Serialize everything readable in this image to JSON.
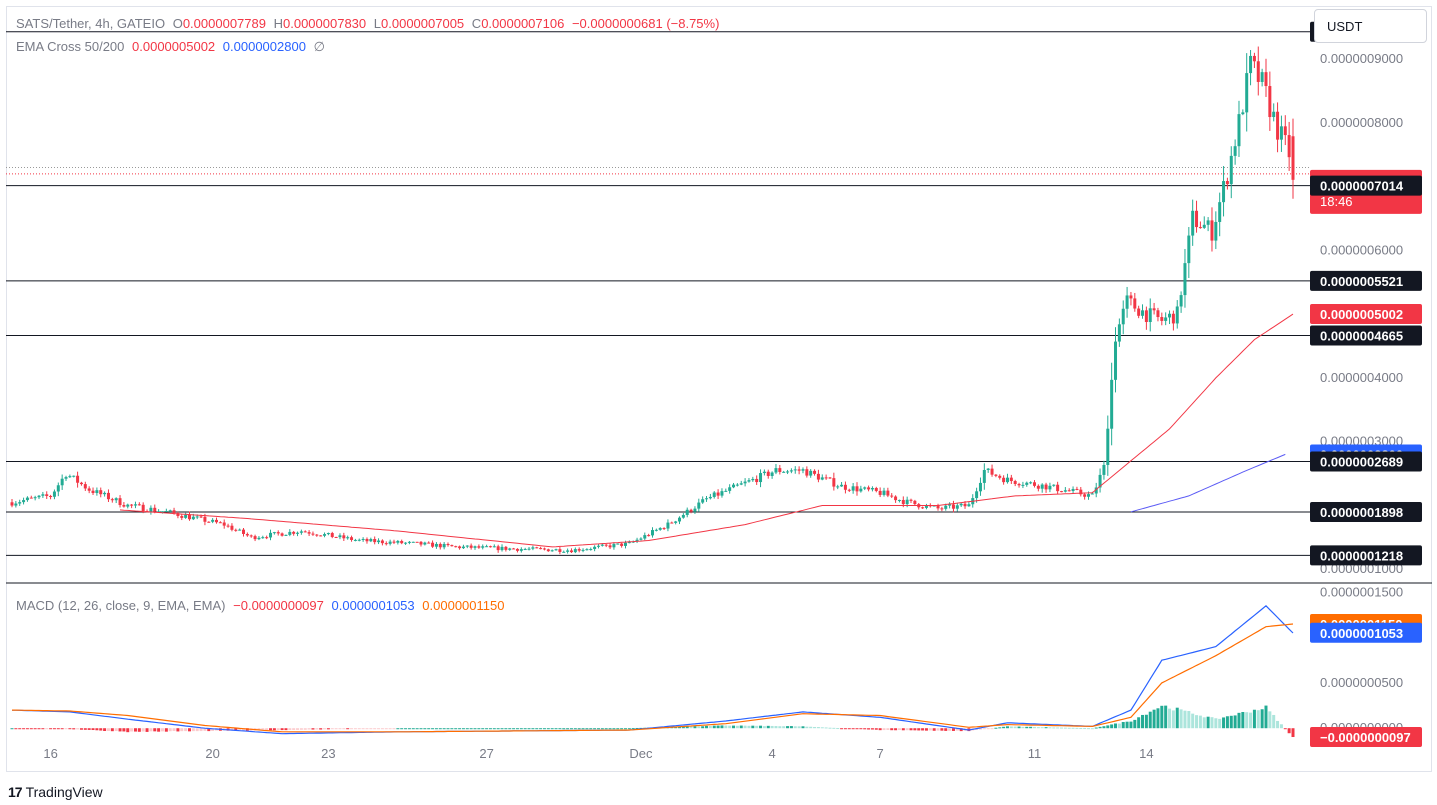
{
  "header": {
    "symbol": "SATS/Tether, 4h, GATEIO",
    "ohlc": {
      "o_label": "O",
      "o": "0.0000007789",
      "h_label": "H",
      "h": "0.0000007830",
      "l_label": "L",
      "l": "0.0000007005",
      "c_label": "C",
      "c": "0.0000007106",
      "change": "−0.0000000681 (−8.75%)"
    },
    "ema_label": "EMA Cross 50/200",
    "ema_fast": "0.0000005002",
    "ema_slow": "0.0000002800",
    "ema_suffix": "∅"
  },
  "currency_button": "USDT",
  "macd_legend": {
    "label": "MACD (12, 26, close, 9, EMA, EMA)",
    "hist": "−0.0000000097",
    "macd": "0.0000001053",
    "signal": "0.0000001150"
  },
  "footer": {
    "logo": "17",
    "brand": "TradingView"
  },
  "colors": {
    "up": "#22ab94",
    "down": "#f23645",
    "ema_fast": "#f23645",
    "ema_slow": "#5b5bf5",
    "macd": "#2962ff",
    "signal": "#ff6d00",
    "hist_up": "#22ab94",
    "hist_up_weak": "#ace5dc",
    "hist_down": "#f23645",
    "hist_down_weak": "#fccbcd",
    "axis_text": "#787b86"
  },
  "chart_data": [
    {
      "type": "candlestick",
      "title": "SATS/Tether, 4h, GATEIO",
      "y_ticks": [
        "0.0000009000",
        "0.0000008000",
        "0.0000006000",
        "0.0000004000",
        "0.0000003000",
        "0.0000001000"
      ],
      "x_ticks": [
        "16",
        "20",
        "23",
        "27",
        "Dec",
        "4",
        "7",
        "11",
        "14"
      ],
      "ylim": [
        8e-08,
        9.8e-07
      ],
      "horizontal_levels": [
        9.428e-07,
        7.014e-07,
        5.521e-07,
        4.665e-07,
        2.689e-07,
        1.898e-07,
        1.218e-07
      ],
      "price_labels": [
        {
          "text": "0.0000009428",
          "value": 9.428e-07,
          "kind": "level"
        },
        {
          "text": "0.0000007106",
          "value": 7.106e-07,
          "kind": "last",
          "sub": "18:46"
        },
        {
          "text": "0.0000007014",
          "value": 7.014e-07,
          "kind": "level"
        },
        {
          "text": "0.0000005521",
          "value": 5.521e-07,
          "kind": "level"
        },
        {
          "text": "0.0000005002",
          "value": 5.002e-07,
          "kind": "ema_fast"
        },
        {
          "text": "0.0000004665",
          "value": 4.665e-07,
          "kind": "level"
        },
        {
          "text": "0.0000002800",
          "value": 2.8e-07,
          "kind": "ema_slow"
        },
        {
          "text": "0.0000002689",
          "value": 2.689e-07,
          "kind": "level"
        },
        {
          "text": "0.0000001898",
          "value": 1.898e-07,
          "kind": "level"
        },
        {
          "text": "0.0000001218",
          "value": 1.218e-07,
          "kind": "level"
        }
      ],
      "last_close": 7.106e-07,
      "price_keypoints": [
        [
          0,
          2.05e-07
        ],
        [
          10,
          2.15e-07
        ],
        [
          14,
          2.5e-07
        ],
        [
          20,
          2.25e-07
        ],
        [
          30,
          2e-07
        ],
        [
          40,
          1.9e-07
        ],
        [
          55,
          1.7e-07
        ],
        [
          62,
          1.5e-07
        ],
        [
          75,
          1.6e-07
        ],
        [
          90,
          1.45e-07
        ],
        [
          105,
          1.4e-07
        ],
        [
          115,
          1.35e-07
        ],
        [
          130,
          1.32e-07
        ],
        [
          145,
          1.3e-07
        ],
        [
          160,
          1.4e-07
        ],
        [
          170,
          1.7e-07
        ],
        [
          180,
          2.1e-07
        ],
        [
          190,
          2.35e-07
        ],
        [
          198,
          2.55e-07
        ],
        [
          205,
          2.55e-07
        ],
        [
          215,
          2.3e-07
        ],
        [
          225,
          2.2e-07
        ],
        [
          232,
          2.05e-07
        ],
        [
          240,
          1.95e-07
        ],
        [
          248,
          2e-07
        ],
        [
          252,
          2.55e-07
        ],
        [
          258,
          2.4e-07
        ],
        [
          268,
          2.3e-07
        ],
        [
          276,
          2.2e-07
        ],
        [
          280,
          2.15e-07
        ],
        [
          283,
          2.6e-07
        ],
        [
          286,
          4.65e-07
        ],
        [
          289,
          5.2e-07
        ],
        [
          294,
          5e-07
        ],
        [
          298,
          4.9e-07
        ],
        [
          302,
          5e-07
        ],
        [
          306,
          6.5e-07
        ],
        [
          311,
          6.3e-07
        ],
        [
          315,
          7.2e-07
        ],
        [
          318,
          8e-07
        ],
        [
          321,
          8.9e-07
        ],
        [
          324,
          8.6e-07
        ],
        [
          328,
          7.9e-07
        ],
        [
          332,
          7.4e-07
        ]
      ],
      "ema_fast_keypoints": [
        [
          28,
          1.93e-07
        ],
        [
          60,
          1.8e-07
        ],
        [
          100,
          1.6e-07
        ],
        [
          140,
          1.35e-07
        ],
        [
          165,
          1.45e-07
        ],
        [
          190,
          1.7e-07
        ],
        [
          210,
          2e-07
        ],
        [
          240,
          2e-07
        ],
        [
          260,
          2.15e-07
        ],
        [
          280,
          2.2e-07
        ],
        [
          290,
          2.7e-07
        ],
        [
          300,
          3.2e-07
        ],
        [
          312,
          4e-07
        ],
        [
          322,
          4.6e-07
        ],
        [
          332,
          5e-07
        ]
      ],
      "ema_slow_keypoints": [
        [
          290,
          1.9e-07
        ],
        [
          305,
          2.15e-07
        ],
        [
          320,
          2.55e-07
        ],
        [
          330,
          2.8e-07
        ]
      ]
    },
    {
      "type": "line+bar",
      "title": "MACD (12, 26, close, 9, EMA, EMA)",
      "y_ticks": [
        "0.0000001500",
        "0.0000000500",
        "0.0000000000"
      ],
      "ylim": [
        -1.3e-08,
        1.58e-07
      ],
      "value_labels": [
        {
          "text": "0.0000001150",
          "value": 1.15e-07,
          "kind": "signal"
        },
        {
          "text": "0.0000001053",
          "value": 1.053e-07,
          "kind": "macd"
        },
        {
          "text": "−0.0000000097",
          "value": -9.7e-09,
          "kind": "hist"
        }
      ],
      "macd_keypoints": [
        [
          0,
          2e-08
        ],
        [
          15,
          1.8e-08
        ],
        [
          30,
          1e-08
        ],
        [
          50,
          0.0
        ],
        [
          70,
          -6e-09
        ],
        [
          100,
          -4e-09
        ],
        [
          130,
          -3e-09
        ],
        [
          160,
          -2e-09
        ],
        [
          185,
          8e-09
        ],
        [
          205,
          1.8e-08
        ],
        [
          225,
          1.2e-08
        ],
        [
          248,
          -2e-09
        ],
        [
          258,
          6e-09
        ],
        [
          280,
          2e-09
        ],
        [
          290,
          2e-08
        ],
        [
          298,
          7.5e-08
        ],
        [
          312,
          9e-08
        ],
        [
          325,
          1.35e-07
        ],
        [
          332,
          1.05e-07
        ]
      ],
      "signal_keypoints": [
        [
          0,
          2e-08
        ],
        [
          15,
          1.9e-08
        ],
        [
          30,
          1.4e-08
        ],
        [
          50,
          3e-09
        ],
        [
          70,
          -4e-09
        ],
        [
          100,
          -4e-09
        ],
        [
          130,
          -3e-09
        ],
        [
          160,
          -2e-09
        ],
        [
          185,
          5e-09
        ],
        [
          205,
          1.6e-08
        ],
        [
          225,
          1.4e-08
        ],
        [
          248,
          1e-09
        ],
        [
          258,
          4e-09
        ],
        [
          280,
          2e-09
        ],
        [
          290,
          1.2e-08
        ],
        [
          298,
          5e-08
        ],
        [
          312,
          8e-08
        ],
        [
          325,
          1.12e-07
        ],
        [
          332,
          1.15e-07
        ]
      ]
    }
  ]
}
